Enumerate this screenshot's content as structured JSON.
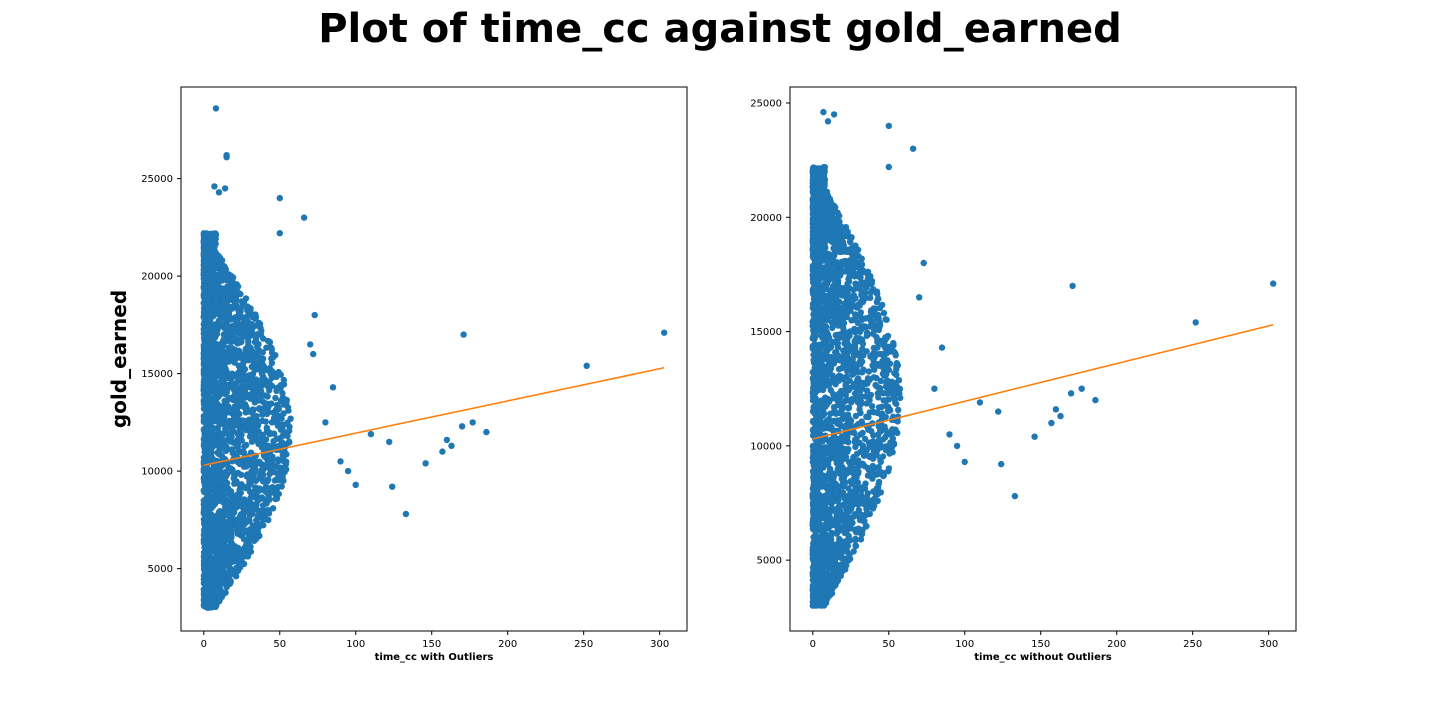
{
  "figure": {
    "title": "Plot of time_cc against gold_earned"
  },
  "chart_data": [
    {
      "type": "scatter",
      "title": "",
      "xlabel": "time_cc with Outliers",
      "ylabel": "gold_earned",
      "xlim": [
        -15,
        318
      ],
      "ylim": [
        1800,
        29700
      ],
      "xticks": [
        0,
        50,
        100,
        150,
        200,
        250,
        300
      ],
      "yticks": [
        5000,
        10000,
        15000,
        20000,
        25000
      ],
      "grid": false,
      "series": [
        {
          "kind": "points",
          "color": "#1f77b4",
          "note": "dense cloud for x roughly 0-60, y roughly 3000-22000, plus sparse points listed",
          "cluster": {
            "x_range": [
              0,
              55
            ],
            "y_range": [
              3000,
              22000
            ]
          },
          "x": [
            8,
            15,
            15,
            7,
            10,
            14,
            50,
            66,
            50,
            73,
            70,
            72,
            85,
            80,
            90,
            95,
            100,
            110,
            122,
            124,
            133,
            146,
            157,
            160,
            163,
            170,
            171,
            177,
            186,
            252,
            303
          ],
          "y": [
            28600,
            26200,
            26100,
            24600,
            24300,
            24500,
            24000,
            23000,
            22200,
            18000,
            16500,
            16000,
            14300,
            12500,
            10500,
            10000,
            9300,
            11900,
            11500,
            9200,
            7800,
            10400,
            11000,
            11600,
            11300,
            12300,
            17000,
            12500,
            12000,
            15400,
            17100
          ]
        },
        {
          "kind": "line",
          "color": "#ff7f0e",
          "x": [
            0,
            303
          ],
          "y": [
            10300,
            15300
          ]
        }
      ]
    },
    {
      "type": "scatter",
      "title": "",
      "xlabel": "time_cc without Outliers",
      "ylabel": "",
      "xlim": [
        -15,
        318
      ],
      "ylim": [
        1900,
        25700
      ],
      "xticks": [
        0,
        50,
        100,
        150,
        200,
        250,
        300
      ],
      "yticks": [
        5000,
        10000,
        15000,
        20000,
        25000
      ],
      "grid": false,
      "series": [
        {
          "kind": "points",
          "color": "#1f77b4",
          "note": "dense cloud for x roughly 0-60, y roughly 3000-22000, plus sparse points listed",
          "cluster": {
            "x_range": [
              0,
              55
            ],
            "y_range": [
              3000,
              22000
            ]
          },
          "x": [
            7,
            14,
            10,
            50,
            66,
            50,
            73,
            70,
            85,
            80,
            90,
            95,
            100,
            110,
            122,
            124,
            133,
            146,
            157,
            160,
            163,
            170,
            171,
            177,
            186,
            252,
            303
          ],
          "y": [
            24600,
            24500,
            24200,
            24000,
            23000,
            22200,
            18000,
            16500,
            14300,
            12500,
            10500,
            10000,
            9300,
            11900,
            11500,
            9200,
            7800,
            10400,
            11000,
            11600,
            11300,
            12300,
            17000,
            12500,
            12000,
            15400,
            17100
          ]
        },
        {
          "kind": "line",
          "color": "#ff7f0e",
          "x": [
            0,
            303
          ],
          "y": [
            10300,
            15300
          ]
        }
      ]
    }
  ]
}
